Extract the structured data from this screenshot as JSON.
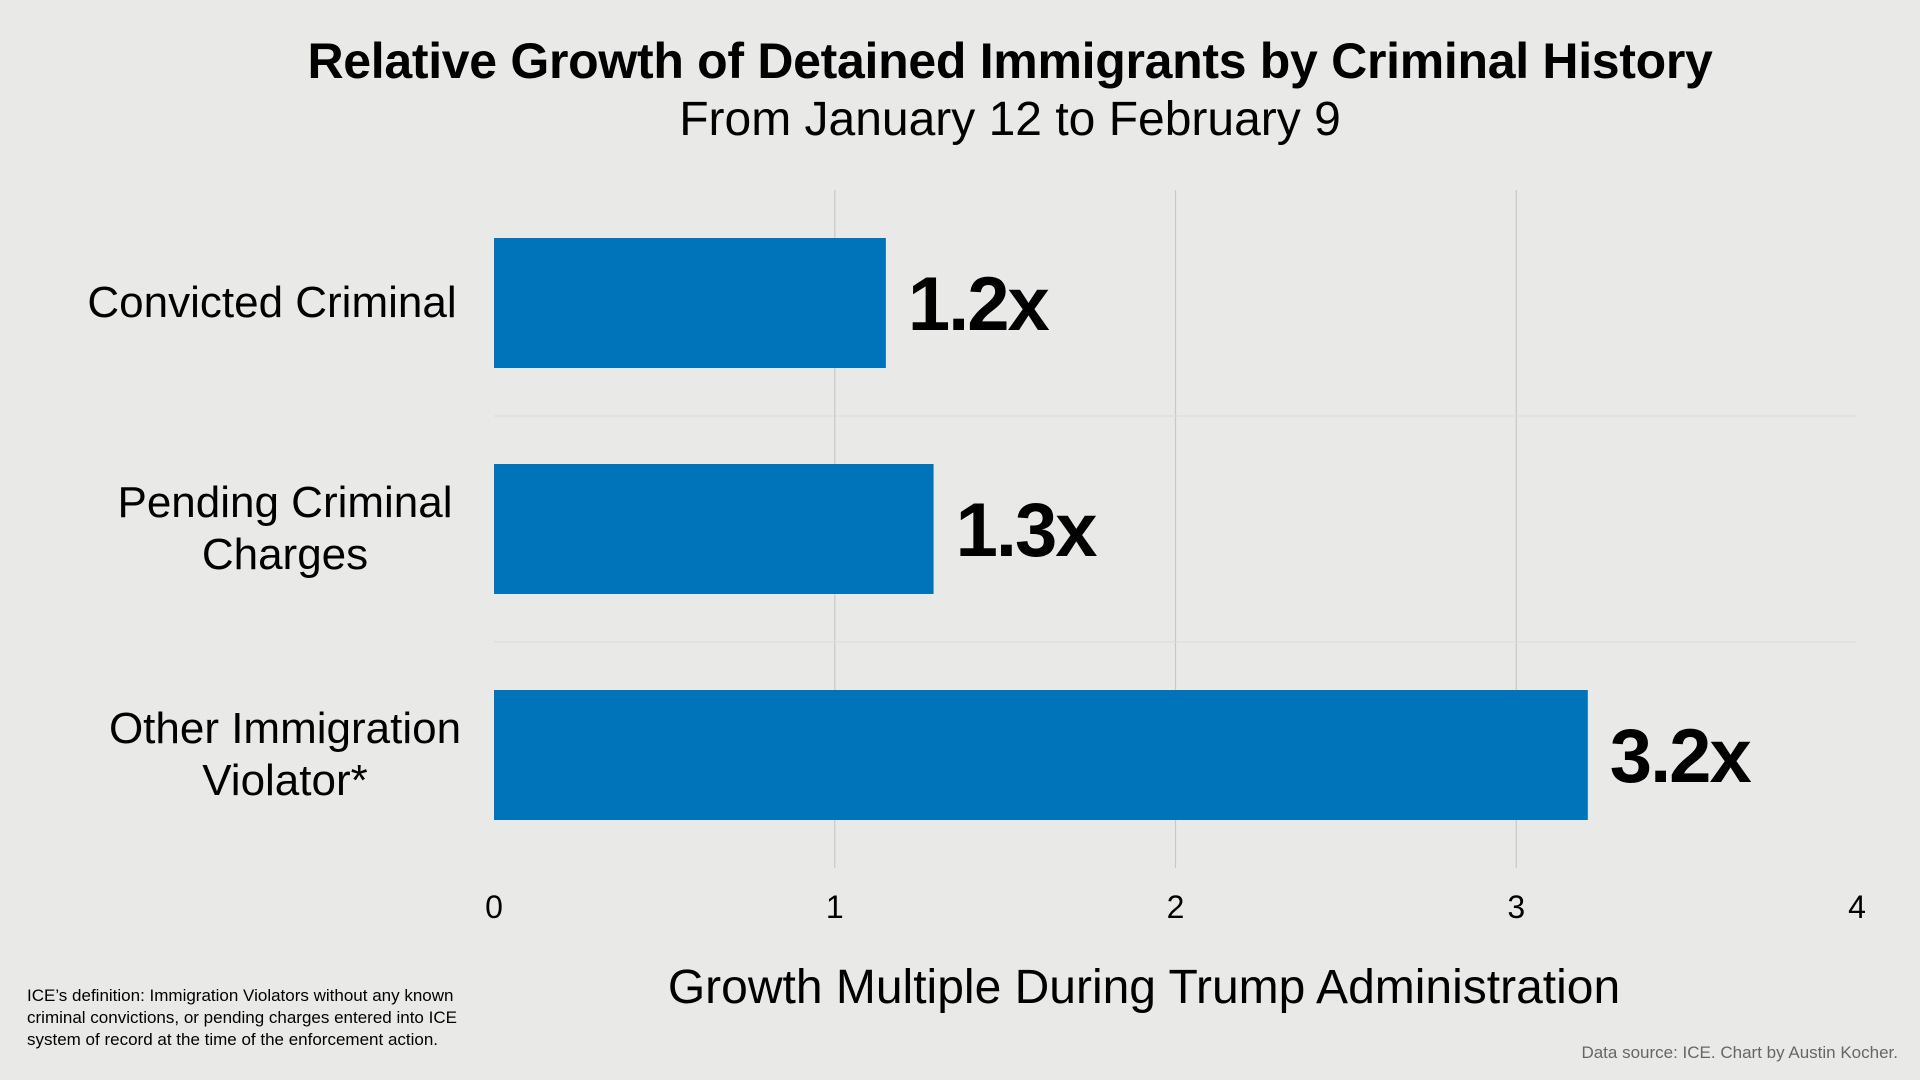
{
  "chart_data": {
    "type": "bar",
    "orientation": "horizontal",
    "title": "Relative Growth of Detained Immigrants by Criminal History",
    "subtitle": "From January 12 to February 9",
    "categories": [
      "Convicted Criminal",
      "Pending Criminal Charges",
      "Other Immigration Violator*"
    ],
    "category_lines": [
      [
        "Convicted Criminal"
      ],
      [
        "Pending Criminal",
        "Charges"
      ],
      [
        "Other Immigration",
        "Violator*"
      ]
    ],
    "values": [
      1.15,
      1.29,
      3.21
    ],
    "data_labels": [
      "1.2x",
      "1.3x",
      "3.2x"
    ],
    "xlabel": "Growth Multiple During Trump Administration",
    "ylabel": "",
    "xlim": [
      0,
      4
    ],
    "xticks": [
      "0",
      "1",
      "2",
      "3",
      "4"
    ],
    "grid": true,
    "bar_color": "#0074bb"
  },
  "footnote": "ICE’s definition: Immigration Violators without any known criminal convictions, or pending charges entered into ICE system of record at the time of the enforcement action.",
  "source": "Data source: ICE. Chart by Austin Kocher."
}
